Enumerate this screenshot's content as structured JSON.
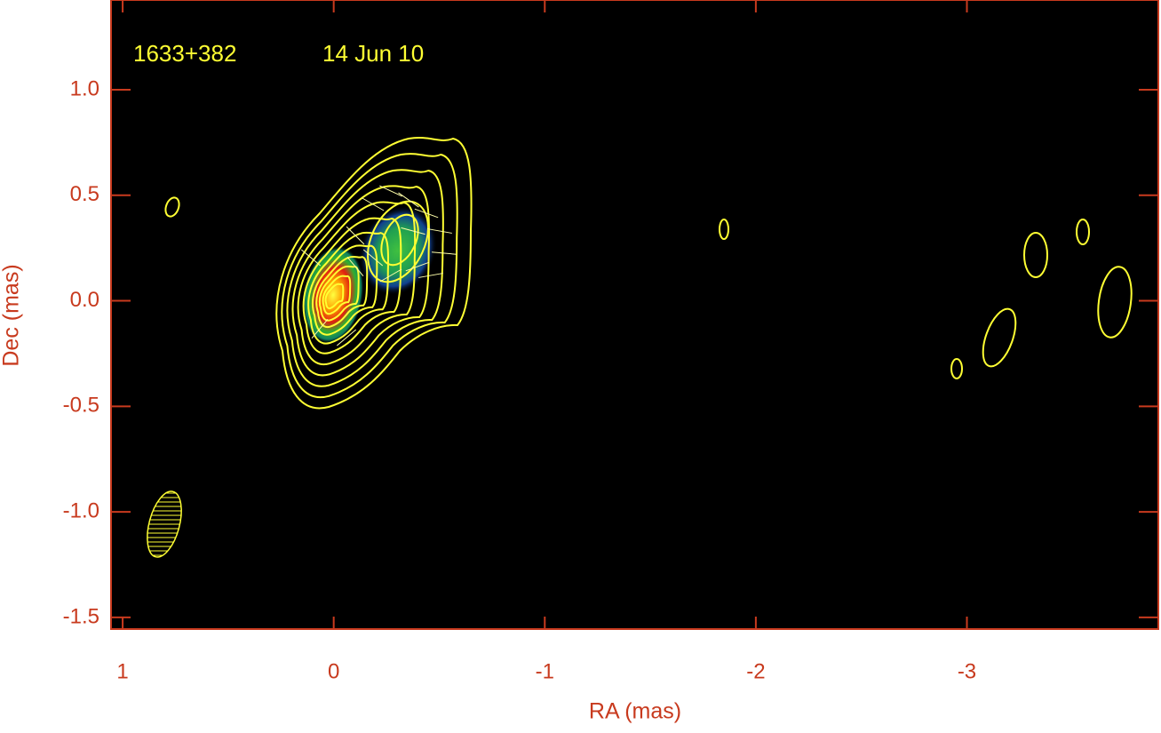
{
  "chart_data": {
    "type": "contour-image",
    "annotations": [
      "1633+382",
      "14 Jun 10"
    ],
    "x_label": "RA (mas)",
    "y_label": "Dec (mas)",
    "xlim": [
      1.055,
      -3.907
    ],
    "ylim": [
      -1.555,
      1.425
    ],
    "xticks": [
      1,
      0,
      -1,
      -2,
      -3
    ],
    "yticks": [
      {
        "value": 1,
        "label": "1.0"
      },
      0.5,
      {
        "value": 0,
        "label": "0.0"
      },
      -0.5,
      {
        "value": -1,
        "label": "-1.0"
      },
      -1.5
    ],
    "frame_color": "#c83a1e",
    "contour_color": "#ffff33"
  }
}
